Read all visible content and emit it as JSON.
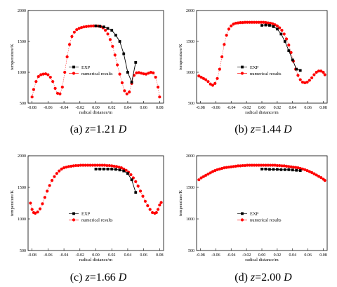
{
  "chart_data": [
    {
      "type": "scatter",
      "caption": {
        "prefix": "(a) ",
        "var": "z",
        "value": "=1.21",
        "unit": "D"
      },
      "xlabel": "radical distance/m",
      "ylabel": "temperature/K",
      "xlim": [
        -0.085,
        0.085
      ],
      "ylim": [
        500,
        2000
      ],
      "xticks": [
        "-0.08",
        "-0.06",
        "-0.04",
        "-0.02",
        "0.00",
        "0.02",
        "0.04",
        "0.06",
        "0.08"
      ],
      "yticks": [
        "500",
        "1000",
        "1500",
        "2000"
      ],
      "legend_position": "center-left",
      "series": [
        {
          "name": "EXP",
          "marker": "square",
          "color": "#000000",
          "line": true,
          "x": [
            0.0,
            0.005,
            0.01,
            0.015,
            0.02,
            0.025,
            0.03,
            0.035,
            0.04,
            0.045,
            0.05
          ],
          "y": [
            1750,
            1745,
            1735,
            1710,
            1680,
            1600,
            1500,
            1300,
            1000,
            840,
            1160
          ]
        },
        {
          "name": "numerical results",
          "marker": "circle",
          "color": "#ff0000",
          "line": true,
          "x": [
            -0.08,
            -0.078,
            -0.075,
            -0.072,
            -0.069,
            -0.066,
            -0.063,
            -0.06,
            -0.057,
            -0.054,
            -0.051,
            -0.048,
            -0.045,
            -0.042,
            -0.039,
            -0.036,
            -0.033,
            -0.03,
            -0.027,
            -0.024,
            -0.021,
            -0.018,
            -0.015,
            -0.012,
            -0.009,
            -0.006,
            -0.003,
            0.0,
            0.003,
            0.006,
            0.009,
            0.012,
            0.015,
            0.018,
            0.021,
            0.024,
            0.027,
            0.03,
            0.033,
            0.036,
            0.039,
            0.042,
            0.045,
            0.048,
            0.051,
            0.054,
            0.057,
            0.06,
            0.063,
            0.066,
            0.069,
            0.072,
            0.075,
            0.078,
            0.08
          ],
          "y": [
            600,
            720,
            850,
            930,
            960,
            970,
            975,
            960,
            920,
            850,
            740,
            660,
            650,
            760,
            1000,
            1250,
            1450,
            1580,
            1650,
            1690,
            1710,
            1725,
            1735,
            1740,
            1745,
            1748,
            1750,
            1750,
            1748,
            1740,
            1720,
            1680,
            1620,
            1530,
            1420,
            1280,
            1120,
            970,
            830,
            700,
            650,
            680,
            820,
            950,
            990,
            995,
            985,
            975,
            970,
            985,
            1000,
            990,
            920,
            760,
            600
          ]
        }
      ]
    },
    {
      "type": "scatter",
      "caption": {
        "prefix": "(b) ",
        "var": "z",
        "value": "=1.44",
        "unit": "D"
      },
      "xlabel": "radical distance/m",
      "ylabel": "temperature/K",
      "xlim": [
        -0.085,
        0.085
      ],
      "ylim": [
        500,
        2000
      ],
      "xticks": [
        "-0.08",
        "-0.06",
        "-0.04",
        "-0.02",
        "0.00",
        "0.02",
        "0.04",
        "0.06",
        "0.08"
      ],
      "yticks": [
        "500",
        "1000",
        "1500",
        "2000"
      ],
      "legend_position": "center-left",
      "series": [
        {
          "name": "EXP",
          "marker": "square",
          "color": "#000000",
          "line": true,
          "x": [
            0.0,
            0.005,
            0.01,
            0.015,
            0.02,
            0.025,
            0.03,
            0.035,
            0.04,
            0.045,
            0.05
          ],
          "y": [
            1760,
            1765,
            1760,
            1740,
            1700,
            1620,
            1500,
            1350,
            1200,
            1050,
            1030
          ]
        },
        {
          "name": "numerical results",
          "marker": "circle",
          "color": "#ff0000",
          "line": true,
          "x": [
            -0.082,
            -0.079,
            -0.076,
            -0.073,
            -0.07,
            -0.067,
            -0.064,
            -0.061,
            -0.058,
            -0.055,
            -0.052,
            -0.049,
            -0.046,
            -0.043,
            -0.04,
            -0.037,
            -0.034,
            -0.031,
            -0.028,
            -0.025,
            -0.022,
            -0.019,
            -0.016,
            -0.013,
            -0.01,
            -0.007,
            -0.004,
            -0.001,
            0.002,
            0.005,
            0.008,
            0.011,
            0.014,
            0.017,
            0.02,
            0.023,
            0.026,
            0.029,
            0.032,
            0.035,
            0.038,
            0.041,
            0.044,
            0.047,
            0.05,
            0.053,
            0.056,
            0.059,
            0.062,
            0.065,
            0.068,
            0.071,
            0.074,
            0.077,
            0.08,
            0.082
          ],
          "y": [
            940,
            920,
            900,
            880,
            850,
            810,
            790,
            820,
            900,
            1050,
            1250,
            1450,
            1600,
            1700,
            1750,
            1780,
            1795,
            1800,
            1805,
            1805,
            1810,
            1810,
            1810,
            1810,
            1810,
            1810,
            1810,
            1810,
            1810,
            1805,
            1800,
            1795,
            1785,
            1770,
            1750,
            1720,
            1680,
            1620,
            1540,
            1440,
            1320,
            1180,
            1050,
            950,
            880,
            840,
            830,
            840,
            870,
            910,
            960,
            1000,
            1020,
            1020,
            1000,
            960
          ]
        }
      ]
    },
    {
      "type": "scatter",
      "caption": {
        "prefix": "(c) ",
        "var": "z",
        "value": "=1.66",
        "unit": "D"
      },
      "xlabel": "radical distance/m",
      "ylabel": "temperature/K",
      "xlim": [
        -0.085,
        0.085
      ],
      "ylim": [
        500,
        2000
      ],
      "xticks": [
        "-0.08",
        "-0.06",
        "-0.04",
        "-0.02",
        "0.00",
        "0.02",
        "0.04",
        "0.06",
        "0.08"
      ],
      "yticks": [
        "500",
        "1000",
        "1500",
        "2000"
      ],
      "legend_position": "center-left",
      "series": [
        {
          "name": "EXP",
          "marker": "square",
          "color": "#000000",
          "line": true,
          "x": [
            0.0,
            0.005,
            0.01,
            0.015,
            0.02,
            0.025,
            0.03,
            0.035,
            0.04,
            0.045,
            0.05
          ],
          "y": [
            1790,
            1790,
            1790,
            1790,
            1790,
            1785,
            1775,
            1760,
            1720,
            1620,
            1420
          ]
        },
        {
          "name": "numerical results",
          "marker": "circle",
          "color": "#ff0000",
          "line": true,
          "x": [
            -0.082,
            -0.08,
            -0.078,
            -0.076,
            -0.073,
            -0.07,
            -0.067,
            -0.064,
            -0.061,
            -0.058,
            -0.055,
            -0.052,
            -0.049,
            -0.046,
            -0.043,
            -0.04,
            -0.037,
            -0.034,
            -0.031,
            -0.028,
            -0.025,
            -0.022,
            -0.019,
            -0.016,
            -0.013,
            -0.01,
            -0.007,
            -0.004,
            -0.001,
            0.002,
            0.005,
            0.008,
            0.011,
            0.014,
            0.017,
            0.02,
            0.023,
            0.026,
            0.029,
            0.032,
            0.035,
            0.038,
            0.041,
            0.044,
            0.047,
            0.05,
            0.053,
            0.056,
            0.059,
            0.062,
            0.065,
            0.068,
            0.071,
            0.074,
            0.076,
            0.078,
            0.08,
            0.082
          ],
          "y": [
            1250,
            1150,
            1100,
            1090,
            1110,
            1160,
            1240,
            1340,
            1440,
            1530,
            1610,
            1670,
            1720,
            1760,
            1790,
            1810,
            1820,
            1830,
            1835,
            1840,
            1845,
            1845,
            1850,
            1850,
            1850,
            1850,
            1850,
            1850,
            1850,
            1850,
            1850,
            1850,
            1850,
            1845,
            1845,
            1840,
            1835,
            1830,
            1820,
            1810,
            1790,
            1770,
            1740,
            1700,
            1650,
            1590,
            1520,
            1440,
            1360,
            1280,
            1210,
            1150,
            1100,
            1090,
            1100,
            1150,
            1220,
            1260
          ]
        }
      ]
    },
    {
      "type": "scatter",
      "caption": {
        "prefix": "(d) ",
        "var": "z",
        "value": "=2.00",
        "unit": "D"
      },
      "xlabel": "radical distance/m",
      "ylabel": "temperature/K",
      "xlim": [
        -0.085,
        0.085
      ],
      "ylim": [
        500,
        2000
      ],
      "xticks": [
        "-0.08",
        "-0.06",
        "-0.04",
        "-0.02",
        "0.00",
        "0.02",
        "0.04",
        "0.06",
        "0.08"
      ],
      "yticks": [
        "500",
        "1000",
        "1500",
        "2000"
      ],
      "legend_position": "center-left",
      "series": [
        {
          "name": "EXP",
          "marker": "square",
          "color": "#000000",
          "line": true,
          "x": [
            0.0,
            0.005,
            0.01,
            0.015,
            0.02,
            0.025,
            0.03,
            0.035,
            0.04,
            0.045,
            0.05
          ],
          "y": [
            1790,
            1790,
            1785,
            1785,
            1785,
            1780,
            1780,
            1780,
            1775,
            1770,
            1765
          ]
        },
        {
          "name": "numerical results",
          "marker": "circle",
          "color": "#ff0000",
          "line": true,
          "x": [
            -0.082,
            -0.079,
            -0.076,
            -0.073,
            -0.07,
            -0.067,
            -0.064,
            -0.061,
            -0.058,
            -0.055,
            -0.052,
            -0.049,
            -0.046,
            -0.043,
            -0.04,
            -0.037,
            -0.034,
            -0.031,
            -0.028,
            -0.025,
            -0.022,
            -0.019,
            -0.016,
            -0.013,
            -0.01,
            -0.007,
            -0.004,
            -0.001,
            0.002,
            0.005,
            0.008,
            0.011,
            0.014,
            0.017,
            0.02,
            0.023,
            0.026,
            0.029,
            0.032,
            0.035,
            0.038,
            0.041,
            0.044,
            0.047,
            0.05,
            0.053,
            0.056,
            0.059,
            0.062,
            0.065,
            0.068,
            0.071,
            0.074,
            0.077,
            0.08,
            0.082
          ],
          "y": [
            1620,
            1650,
            1670,
            1690,
            1710,
            1730,
            1750,
            1765,
            1780,
            1790,
            1800,
            1810,
            1815,
            1820,
            1825,
            1830,
            1835,
            1840,
            1840,
            1845,
            1845,
            1850,
            1850,
            1850,
            1850,
            1850,
            1850,
            1850,
            1850,
            1850,
            1850,
            1850,
            1850,
            1850,
            1845,
            1845,
            1840,
            1840,
            1835,
            1830,
            1825,
            1820,
            1815,
            1810,
            1800,
            1790,
            1780,
            1765,
            1750,
            1735,
            1715,
            1695,
            1675,
            1655,
            1630,
            1610
          ]
        }
      ]
    }
  ]
}
